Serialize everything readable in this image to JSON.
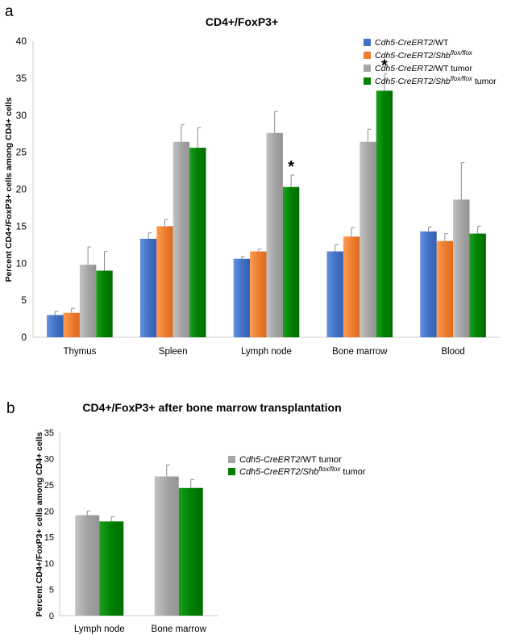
{
  "panels": [
    {
      "letter": "a"
    },
    {
      "letter": "b"
    }
  ],
  "chart_data": [
    {
      "type": "bar",
      "title": "CD4+/FoxP3+",
      "ylabel": "Percent CD4+/FoxP3+ cells among CD4+ cells",
      "xlabel": "",
      "ylim": [
        0,
        40
      ],
      "yticks": [
        0,
        5,
        10,
        15,
        20,
        25,
        30,
        35,
        40
      ],
      "grid": false,
      "legend_position": "top-right",
      "categories": [
        "Thymus",
        "Spleen",
        "Lymph node",
        "Bone marrow",
        "Blood"
      ],
      "series": [
        {
          "name": "Cdh5-CreERT2/WT",
          "legend_parts": [
            {
              "t": "Cdh5-CreERT2",
              "s": "italic"
            },
            {
              "t": "/WT",
              "s": "normal"
            }
          ],
          "color": "#4472c4",
          "values": [
            3.0,
            13.3,
            10.6,
            11.6,
            14.3
          ],
          "errors": [
            0.5,
            0.8,
            0.3,
            0.9,
            0.6
          ]
        },
        {
          "name": "Cdh5-CreERT2/Shb flox/flox",
          "legend_parts": [
            {
              "t": "Cdh5-CreERT2",
              "s": "italic"
            },
            {
              "t": "/",
              "s": "italic"
            },
            {
              "t": "Shb",
              "s": "italic"
            },
            {
              "t": "flox/flox",
              "s": "sup"
            }
          ],
          "color": "#ed7d31",
          "values": [
            3.3,
            15.0,
            11.6,
            13.6,
            13.0
          ],
          "errors": [
            0.6,
            0.9,
            0.3,
            1.2,
            1.0
          ]
        },
        {
          "name": "Cdh5-CreERT2/WT tumor",
          "legend_parts": [
            {
              "t": "Cdh5-CreERT2",
              "s": "italic"
            },
            {
              "t": "/WT tumor",
              "s": "normal"
            }
          ],
          "color": "#a5a5a5",
          "values": [
            9.8,
            26.4,
            27.6,
            26.4,
            18.6
          ],
          "errors": [
            2.4,
            2.3,
            2.9,
            1.7,
            5.0
          ]
        },
        {
          "name": "Cdh5-CreERT2/Shb flox/flox tumor",
          "legend_parts": [
            {
              "t": "Cdh5-CreERT2",
              "s": "italic"
            },
            {
              "t": "/",
              "s": "italic"
            },
            {
              "t": "Shb",
              "s": "italic"
            },
            {
              "t": "flox/flox",
              "s": "sup"
            },
            {
              "t": " tumor",
              "s": "normal"
            }
          ],
          "color": "#008000",
          "values": [
            9.0,
            25.6,
            20.3,
            33.3,
            14.0
          ],
          "errors": [
            2.6,
            2.7,
            1.6,
            2.3,
            1.0
          ]
        }
      ],
      "annotations": [
        {
          "text": "*",
          "category": "Lymph node",
          "series": 3
        },
        {
          "text": "*",
          "category": "Bone marrow",
          "series": 3
        }
      ]
    },
    {
      "type": "bar",
      "title": "CD4+/FoxP3+ after bone marrow transplantation",
      "ylabel": "Percent CD4+/FoxP3+ cells among CD4+ cells",
      "xlabel": "",
      "ylim": [
        0,
        35
      ],
      "yticks": [
        0,
        5,
        10,
        15,
        20,
        25,
        30,
        35
      ],
      "grid": false,
      "legend_position": "top-right",
      "categories": [
        "Lymph node",
        "Bone marrow"
      ],
      "series": [
        {
          "name": "Cdh5-CreERT2/WT tumor",
          "legend_parts": [
            {
              "t": "Cdh5-CreERT2",
              "s": "italic"
            },
            {
              "t": "/WT tumor",
              "s": "normal"
            }
          ],
          "color": "#a5a5a5",
          "values": [
            19.2,
            26.6
          ],
          "errors": [
            0.8,
            2.2
          ]
        },
        {
          "name": "Cdh5-CreERT2/Shb flox/flox tumor",
          "legend_parts": [
            {
              "t": "Cdh5-CreERT2",
              "s": "italic"
            },
            {
              "t": "/",
              "s": "italic"
            },
            {
              "t": "Shb",
              "s": "italic"
            },
            {
              "t": "flox/flox",
              "s": "sup"
            },
            {
              "t": " tumor",
              "s": "normal"
            }
          ],
          "color": "#008000",
          "values": [
            18.0,
            24.4
          ],
          "errors": [
            0.9,
            1.6
          ]
        }
      ],
      "annotations": []
    }
  ]
}
